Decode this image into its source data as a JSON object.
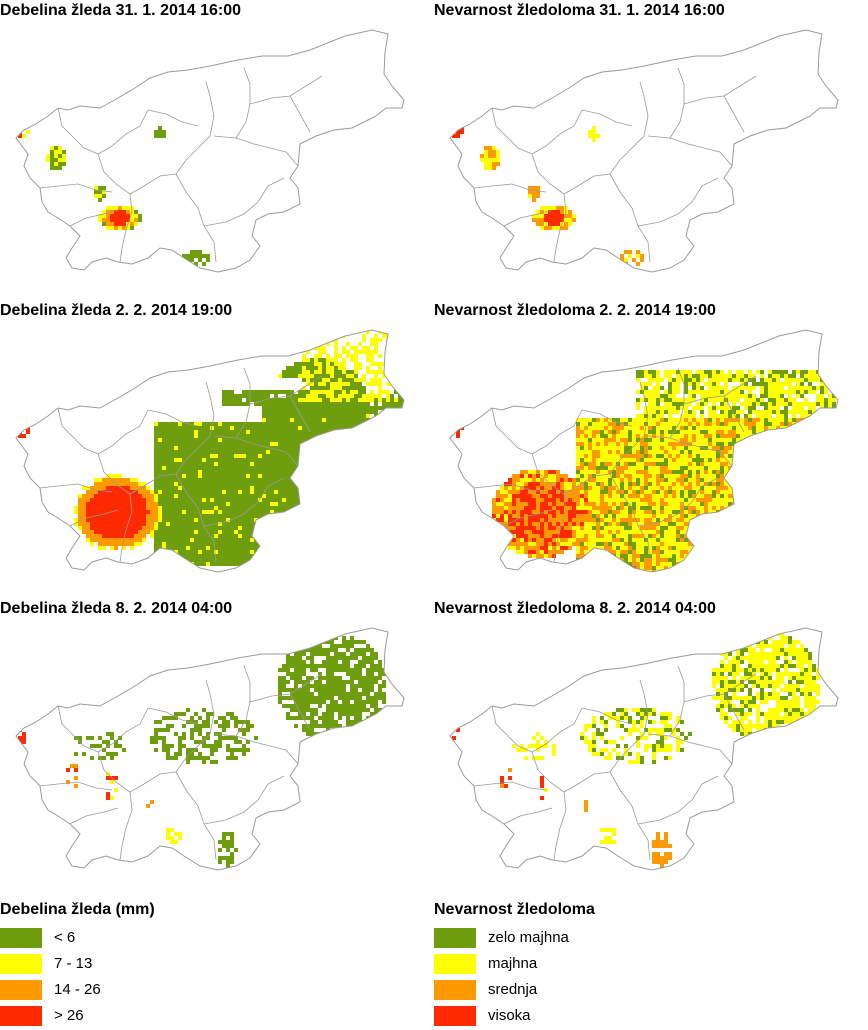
{
  "palette": {
    "green": "#6e9e0e",
    "yellow": "#ffff00",
    "orange": "#ff9900",
    "red": "#ff2a00",
    "outline": "#9a9a9a",
    "background": "#ffffff"
  },
  "panels": [
    {
      "title": "Debelina žleda 31. 1. 2014 16:00",
      "variable": "thickness",
      "episode": "31-01"
    },
    {
      "title": "Nevarnost žledoloma 31. 1. 2014 16:00",
      "variable": "hazard",
      "episode": "31-01"
    },
    {
      "title": "Debelina žleda 2. 2. 2014 19:00",
      "variable": "thickness",
      "episode": "02-02"
    },
    {
      "title": "Nevarnost žledoloma 2. 2. 2014 19:00",
      "variable": "hazard",
      "episode": "02-02"
    },
    {
      "title": "Debelina žleda 8. 2. 2014 04:00",
      "variable": "thickness",
      "episode": "08-02"
    },
    {
      "title": "Nevarnost žledoloma 8. 2. 2014 04:00",
      "variable": "hazard",
      "episode": "08-02"
    }
  ],
  "legends": {
    "thickness": {
      "title": "Debelina žleda (mm)",
      "items": [
        {
          "label": "< 6",
          "color": "#6e9e0e"
        },
        {
          "label": "7 - 13",
          "color": "#ffff00"
        },
        {
          "label": "14 - 26",
          "color": "#ff9900"
        },
        {
          "label": "> 26",
          "color": "#ff2a00"
        }
      ]
    },
    "hazard": {
      "title": "Nevarnost žledoloma",
      "items": [
        {
          "label": "zelo majhna",
          "color": "#6e9e0e"
        },
        {
          "label": "majhna",
          "color": "#ffff00"
        },
        {
          "label": "srednja",
          "color": "#ff9900"
        },
        {
          "label": "visoka",
          "color": "#ff2a00"
        }
      ]
    }
  }
}
